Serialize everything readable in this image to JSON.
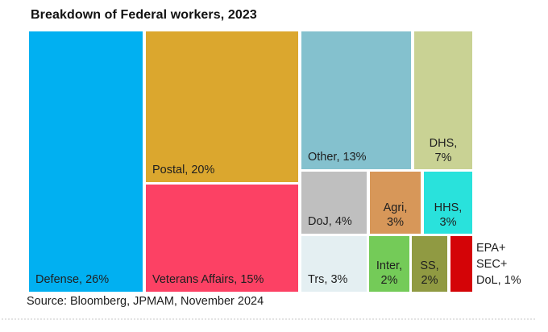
{
  "title": "Breakdown of Federal workers, 2023",
  "source": "Source: Bloomberg, JPMAM, November 2024",
  "outside_label": "EPA+\nSEC+\nDoL, 1%",
  "tiles": [
    {
      "name": "Defense",
      "label": "Defense, 26%",
      "value": 26,
      "color": "#01B0F1"
    },
    {
      "name": "Postal",
      "label": "Postal, 20%",
      "value": 20,
      "color": "#DBA72E"
    },
    {
      "name": "Veterans Affairs",
      "label": "Veterans Affairs, 15%",
      "value": 15,
      "color": "#FC4164"
    },
    {
      "name": "Other",
      "label": "Other, 13%",
      "value": 13,
      "color": "#84C1CE"
    },
    {
      "name": "DHS",
      "label": "DHS,\n7%",
      "value": 7,
      "color": "#C9D294"
    },
    {
      "name": "DoJ",
      "label": "DoJ, 4%",
      "value": 4,
      "color": "#BFBFBF"
    },
    {
      "name": "Agri",
      "label": "Agri,\n3%",
      "value": 3,
      "color": "#D79759"
    },
    {
      "name": "HHS",
      "label": "HHS,\n3%",
      "value": 3,
      "color": "#29E2DC"
    },
    {
      "name": "Trs",
      "label": "Trs, 3%",
      "value": 3,
      "color": "#E4EFF2"
    },
    {
      "name": "Inter",
      "label": "Inter,\n2%",
      "value": 2,
      "color": "#74CB58"
    },
    {
      "name": "SS",
      "label": "SS,\n2%",
      "value": 2,
      "color": "#909A42"
    },
    {
      "name": "EPA+SEC+DoL",
      "label": "",
      "value": 1,
      "color": "#D40407"
    }
  ],
  "chart_data": {
    "type": "treemap",
    "title": "Breakdown of Federal workers, 2023",
    "categories": [
      "Defense",
      "Postal",
      "Veterans Affairs",
      "Other",
      "DHS",
      "DoJ",
      "Agri",
      "HHS",
      "Trs",
      "Inter",
      "SS",
      "EPA+SEC+DoL"
    ],
    "values": [
      26,
      20,
      15,
      13,
      7,
      4,
      3,
      3,
      3,
      2,
      2,
      1
    ],
    "unit": "%",
    "legend": "none",
    "source": "Source: Bloomberg, JPMAM, November 2024"
  }
}
